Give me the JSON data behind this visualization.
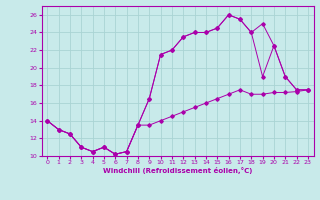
{
  "xlabel": "Windchill (Refroidissement éolien,°C)",
  "xlim": [
    -0.5,
    23.5
  ],
  "ylim": [
    10,
    27
  ],
  "xticks": [
    0,
    1,
    2,
    3,
    4,
    5,
    6,
    7,
    8,
    9,
    10,
    11,
    12,
    13,
    14,
    15,
    16,
    17,
    18,
    19,
    20,
    21,
    22,
    23
  ],
  "yticks": [
    10,
    12,
    14,
    16,
    18,
    20,
    22,
    24,
    26
  ],
  "bg_color": "#c8eaea",
  "line_color": "#aa00aa",
  "grid_color": "#aad4d4",
  "line1_x": [
    0,
    1,
    2,
    3,
    4,
    5,
    6,
    7,
    8,
    9,
    10,
    11,
    12,
    13,
    14,
    15,
    16,
    17,
    18,
    19,
    20,
    21,
    22,
    23
  ],
  "line1_y": [
    14,
    13,
    12.5,
    11,
    10.5,
    11,
    10.2,
    10.5,
    13.5,
    16.5,
    21.5,
    22,
    23.5,
    24,
    24,
    24.5,
    26,
    25.5,
    24,
    25,
    22.5,
    19,
    17.5,
    17.5
  ],
  "line2_x": [
    0,
    1,
    2,
    3,
    4,
    5,
    6,
    7,
    8,
    9,
    10,
    11,
    12,
    13,
    14,
    15,
    16,
    17,
    18,
    19,
    20,
    21,
    22,
    23
  ],
  "line2_y": [
    14,
    13,
    12.5,
    11,
    10.5,
    11,
    10.2,
    10.5,
    13.5,
    16.5,
    21.5,
    22,
    23.5,
    24,
    24,
    24.5,
    26,
    25.5,
    24,
    19,
    22.5,
    19,
    17.5,
    17.5
  ],
  "line3_x": [
    0,
    1,
    2,
    3,
    4,
    5,
    6,
    7,
    8,
    9,
    10,
    11,
    12,
    13,
    14,
    15,
    16,
    17,
    18,
    19,
    20,
    21,
    22,
    23
  ],
  "line3_y": [
    14,
    13,
    12.5,
    11,
    10.5,
    11,
    10.2,
    10.5,
    13.5,
    13.5,
    14,
    14.5,
    15,
    15.5,
    16,
    16.5,
    17,
    17.5,
    17,
    17,
    17.2,
    17.2,
    17.3,
    17.5
  ]
}
